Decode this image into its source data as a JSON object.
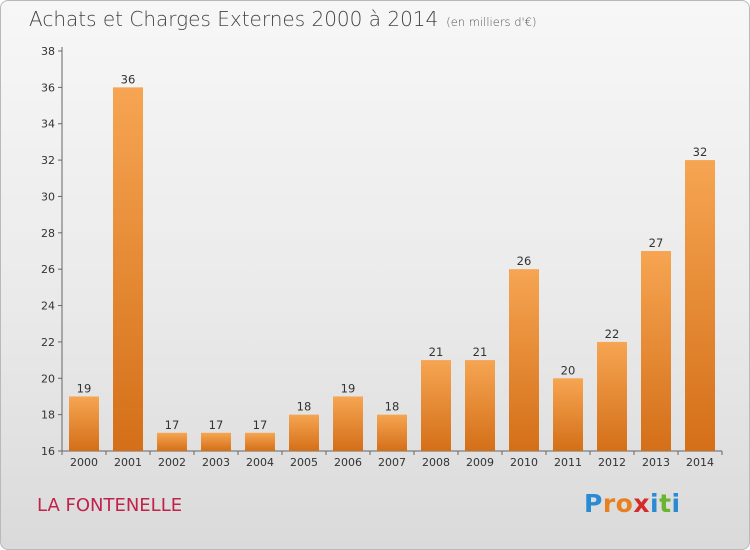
{
  "header": {
    "title": "Achats et Charges Externes 2000 à 2014",
    "unit": "(en milliers d'€)"
  },
  "commune": "LA FONTENELLE",
  "logo": {
    "text": "Proxiti",
    "letters": [
      {
        "ch": "P",
        "color": "#2a8ad4"
      },
      {
        "ch": "r",
        "color": "#e8801f"
      },
      {
        "ch": "o",
        "color": "#e8801f"
      },
      {
        "ch": "x",
        "color": "#d62b2b"
      },
      {
        "ch": "i",
        "color": "#2a8ad4"
      },
      {
        "ch": "t",
        "color": "#6ab42e"
      },
      {
        "ch": "i",
        "color": "#2a8ad4"
      }
    ]
  },
  "chart_data": {
    "type": "bar",
    "title": "Achats et Charges Externes 2000 à 2014",
    "subtitle": "(en milliers d'€)",
    "categories": [
      "2000",
      "2001",
      "2002",
      "2003",
      "2004",
      "2005",
      "2006",
      "2007",
      "2008",
      "2009",
      "2010",
      "2011",
      "2012",
      "2013",
      "2014"
    ],
    "values": [
      19,
      36,
      17,
      17,
      17,
      18,
      19,
      18,
      21,
      21,
      26,
      20,
      22,
      27,
      32
    ],
    "ylim": [
      16,
      38
    ],
    "yticks": [
      16,
      18,
      20,
      22,
      24,
      26,
      28,
      30,
      32,
      34,
      36,
      38
    ],
    "xlabel": "",
    "ylabel": "",
    "grid": false,
    "bar_color": "#f0963c",
    "bar_color_dark": "#d2701a"
  }
}
